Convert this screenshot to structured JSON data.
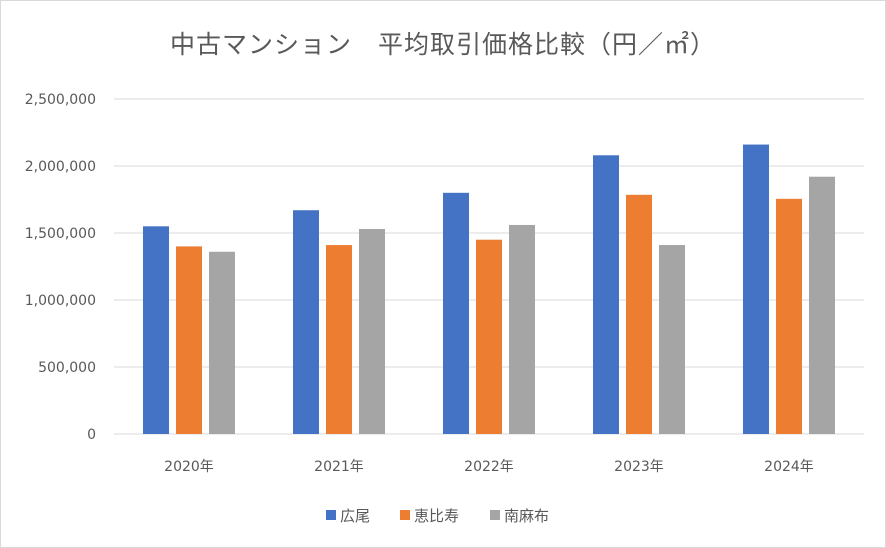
{
  "chart_data": {
    "type": "bar",
    "title": "中古マンション　平均取引価格比較（円／㎡）",
    "categories": [
      "2020年",
      "2021年",
      "2022年",
      "2023年",
      "2024年"
    ],
    "series": [
      {
        "name": "広尾",
        "color": "#4472C4",
        "values": [
          1550000,
          1670000,
          1800000,
          2080000,
          2160000
        ]
      },
      {
        "name": "恵比寿",
        "color": "#ED7D31",
        "values": [
          1400000,
          1410000,
          1450000,
          1785000,
          1755000
        ]
      },
      {
        "name": "南麻布",
        "color": "#A5A5A5",
        "values": [
          1360000,
          1530000,
          1560000,
          1410000,
          1920000
        ]
      }
    ],
    "ylim": [
      0,
      2500000
    ],
    "yticks": [
      "0",
      "500,000",
      "1,000,000",
      "1,500,000",
      "2,000,000",
      "2,500,000"
    ],
    "grid": true,
    "legend": "bottom"
  }
}
